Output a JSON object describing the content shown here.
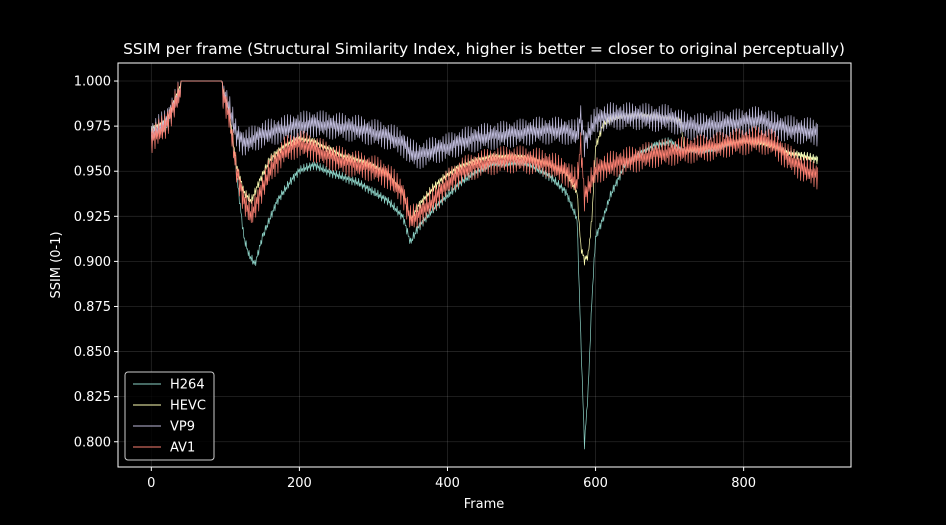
{
  "chart_data": {
    "type": "line",
    "title": "SSIM per frame (Structural Similarity Index, higher is better = closer to original perceptually)",
    "xlabel": "Frame",
    "ylabel": "SSIM (0-1)",
    "xlim": [
      -45,
      945
    ],
    "ylim": [
      0.786,
      1.01
    ],
    "x_ticks": [
      0,
      200,
      400,
      600,
      800
    ],
    "y_ticks": [
      0.8,
      0.825,
      0.85,
      0.875,
      0.9,
      0.925,
      0.95,
      0.975,
      1.0
    ],
    "y_tick_labels": [
      "0.800",
      "0.825",
      "0.850",
      "0.875",
      "0.900",
      "0.925",
      "0.950",
      "0.975",
      "1.000"
    ],
    "grid": true,
    "legend_position": "bottom-left",
    "background": "#000000",
    "frames": 900,
    "series": [
      {
        "name": "H264",
        "color": "#8dd3c7",
        "points": [
          [
            0,
            0.97
          ],
          [
            20,
            0.975
          ],
          [
            40,
            1.0
          ],
          [
            95,
            1.0
          ],
          [
            105,
            0.985
          ],
          [
            115,
            0.95
          ],
          [
            125,
            0.915
          ],
          [
            132,
            0.905
          ],
          [
            140,
            0.9
          ],
          [
            150,
            0.915
          ],
          [
            170,
            0.935
          ],
          [
            190,
            0.947
          ],
          [
            200,
            0.952
          ],
          [
            220,
            0.955
          ],
          [
            240,
            0.951
          ],
          [
            260,
            0.948
          ],
          [
            280,
            0.945
          ],
          [
            300,
            0.94
          ],
          [
            320,
            0.935
          ],
          [
            340,
            0.926
          ],
          [
            350,
            0.912
          ],
          [
            360,
            0.92
          ],
          [
            380,
            0.93
          ],
          [
            400,
            0.938
          ],
          [
            420,
            0.946
          ],
          [
            440,
            0.951
          ],
          [
            460,
            0.955
          ],
          [
            480,
            0.955
          ],
          [
            500,
            0.956
          ],
          [
            520,
            0.953
          ],
          [
            540,
            0.948
          ],
          [
            560,
            0.94
          ],
          [
            575,
            0.925
          ],
          [
            580,
            0.86
          ],
          [
            585,
            0.8
          ],
          [
            590,
            0.83
          ],
          [
            595,
            0.88
          ],
          [
            600,
            0.915
          ],
          [
            610,
            0.925
          ],
          [
            620,
            0.938
          ],
          [
            640,
            0.955
          ],
          [
            660,
            0.962
          ],
          [
            680,
            0.966
          ],
          [
            700,
            0.968
          ],
          [
            720,
            0.963
          ],
          [
            740,
            0.962
          ],
          [
            760,
            0.963
          ],
          [
            780,
            0.966
          ],
          [
            800,
            0.969
          ],
          [
            820,
            0.968
          ],
          [
            840,
            0.966
          ],
          [
            860,
            0.962
          ],
          [
            880,
            0.96
          ],
          [
            900,
            0.958
          ]
        ],
        "spike": 0.003
      },
      {
        "name": "HEVC",
        "color": "#ffffb3",
        "points": [
          [
            0,
            0.975
          ],
          [
            20,
            0.98
          ],
          [
            40,
            1.0
          ],
          [
            95,
            1.0
          ],
          [
            105,
            0.985
          ],
          [
            115,
            0.955
          ],
          [
            125,
            0.94
          ],
          [
            135,
            0.935
          ],
          [
            145,
            0.945
          ],
          [
            160,
            0.958
          ],
          [
            180,
            0.966
          ],
          [
            200,
            0.97
          ],
          [
            220,
            0.968
          ],
          [
            240,
            0.964
          ],
          [
            260,
            0.96
          ],
          [
            280,
            0.958
          ],
          [
            300,
            0.955
          ],
          [
            320,
            0.95
          ],
          [
            340,
            0.94
          ],
          [
            350,
            0.925
          ],
          [
            360,
            0.932
          ],
          [
            380,
            0.942
          ],
          [
            400,
            0.95
          ],
          [
            420,
            0.955
          ],
          [
            440,
            0.958
          ],
          [
            460,
            0.96
          ],
          [
            480,
            0.96
          ],
          [
            500,
            0.96
          ],
          [
            520,
            0.958
          ],
          [
            540,
            0.955
          ],
          [
            560,
            0.95
          ],
          [
            575,
            0.94
          ],
          [
            580,
            0.91
          ],
          [
            585,
            0.902
          ],
          [
            590,
            0.905
          ],
          [
            595,
            0.925
          ],
          [
            600,
            0.965
          ],
          [
            610,
            0.977
          ],
          [
            620,
            0.98
          ],
          [
            640,
            0.982
          ],
          [
            660,
            0.983
          ],
          [
            680,
            0.982
          ],
          [
            700,
            0.981
          ],
          [
            715,
            0.98
          ],
          [
            720,
            0.963
          ],
          [
            740,
            0.964
          ],
          [
            760,
            0.965
          ],
          [
            780,
            0.967
          ],
          [
            800,
            0.968
          ],
          [
            820,
            0.967
          ],
          [
            840,
            0.965
          ],
          [
            860,
            0.962
          ],
          [
            880,
            0.96
          ],
          [
            900,
            0.958
          ]
        ],
        "spike": 0.003
      },
      {
        "name": "VP9",
        "color": "#bebada",
        "points": [
          [
            0,
            0.975
          ],
          [
            20,
            0.982
          ],
          [
            40,
            1.0
          ],
          [
            95,
            1.0
          ],
          [
            105,
            0.99
          ],
          [
            115,
            0.975
          ],
          [
            125,
            0.97
          ],
          [
            135,
            0.972
          ],
          [
            150,
            0.975
          ],
          [
            180,
            0.978
          ],
          [
            200,
            0.98
          ],
          [
            220,
            0.981
          ],
          [
            240,
            0.98
          ],
          [
            260,
            0.979
          ],
          [
            280,
            0.978
          ],
          [
            300,
            0.976
          ],
          [
            320,
            0.974
          ],
          [
            340,
            0.97
          ],
          [
            350,
            0.965
          ],
          [
            360,
            0.963
          ],
          [
            380,
            0.966
          ],
          [
            400,
            0.968
          ],
          [
            420,
            0.971
          ],
          [
            440,
            0.973
          ],
          [
            460,
            0.974
          ],
          [
            480,
            0.975
          ],
          [
            500,
            0.976
          ],
          [
            520,
            0.977
          ],
          [
            540,
            0.977
          ],
          [
            560,
            0.977
          ],
          [
            575,
            0.975
          ],
          [
            580,
            0.985
          ],
          [
            585,
            0.97
          ],
          [
            590,
            0.975
          ],
          [
            600,
            0.983
          ],
          [
            620,
            0.985
          ],
          [
            640,
            0.985
          ],
          [
            660,
            0.985
          ],
          [
            680,
            0.984
          ],
          [
            700,
            0.984
          ],
          [
            720,
            0.98
          ],
          [
            740,
            0.979
          ],
          [
            760,
            0.98
          ],
          [
            780,
            0.981
          ],
          [
            800,
            0.982
          ],
          [
            820,
            0.983
          ],
          [
            840,
            0.98
          ],
          [
            860,
            0.978
          ],
          [
            880,
            0.977
          ],
          [
            900,
            0.976
          ]
        ],
        "spike": 0.009
      },
      {
        "name": "AV1",
        "color": "#fb8072",
        "points": [
          [
            0,
            0.972
          ],
          [
            20,
            0.98
          ],
          [
            40,
            1.0
          ],
          [
            95,
            1.0
          ],
          [
            105,
            0.985
          ],
          [
            115,
            0.955
          ],
          [
            125,
            0.938
          ],
          [
            135,
            0.93
          ],
          [
            145,
            0.94
          ],
          [
            160,
            0.955
          ],
          [
            180,
            0.966
          ],
          [
            200,
            0.97
          ],
          [
            220,
            0.967
          ],
          [
            240,
            0.963
          ],
          [
            260,
            0.96
          ],
          [
            280,
            0.958
          ],
          [
            300,
            0.956
          ],
          [
            320,
            0.952
          ],
          [
            340,
            0.942
          ],
          [
            350,
            0.928
          ],
          [
            360,
            0.93
          ],
          [
            380,
            0.938
          ],
          [
            400,
            0.948
          ],
          [
            420,
            0.955
          ],
          [
            440,
            0.958
          ],
          [
            460,
            0.96
          ],
          [
            480,
            0.961
          ],
          [
            500,
            0.961
          ],
          [
            520,
            0.96
          ],
          [
            540,
            0.958
          ],
          [
            560,
            0.954
          ],
          [
            575,
            0.948
          ],
          [
            580,
            0.97
          ],
          [
            585,
            0.94
          ],
          [
            590,
            0.945
          ],
          [
            600,
            0.955
          ],
          [
            620,
            0.958
          ],
          [
            640,
            0.96
          ],
          [
            660,
            0.962
          ],
          [
            680,
            0.964
          ],
          [
            700,
            0.965
          ],
          [
            720,
            0.966
          ],
          [
            740,
            0.967
          ],
          [
            760,
            0.968
          ],
          [
            780,
            0.97
          ],
          [
            800,
            0.971
          ],
          [
            820,
            0.972
          ],
          [
            840,
            0.97
          ],
          [
            860,
            0.962
          ],
          [
            880,
            0.956
          ],
          [
            900,
            0.952
          ]
        ],
        "spike": 0.009
      }
    ]
  }
}
